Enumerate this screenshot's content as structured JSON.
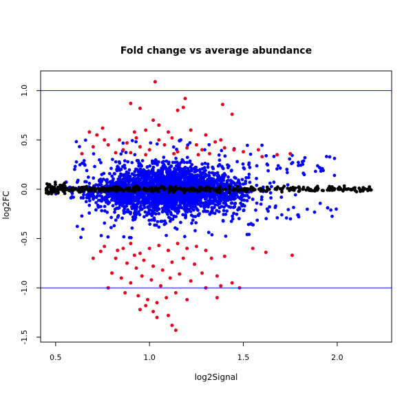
{
  "chart_data": {
    "type": "scatter",
    "title": "Fold change vs average abundance",
    "xlabel": "log2Signal",
    "ylabel": "log2FC",
    "xlim": [
      0.42,
      2.29
    ],
    "ylim": [
      -1.55,
      1.2
    ],
    "x_ticks": [
      {
        "value": 0.5,
        "label": "0.5"
      },
      {
        "value": 1.0,
        "label": "1.0"
      },
      {
        "value": 1.5,
        "label": "1.5"
      },
      {
        "value": 2.0,
        "label": "2.0"
      }
    ],
    "y_ticks": [
      {
        "value": -1.5,
        "label": "-1.5"
      },
      {
        "value": -1.0,
        "label": "-1.0"
      },
      {
        "value": -0.5,
        "label": "-0.5"
      },
      {
        "value": 0.0,
        "label": "0.0"
      },
      {
        "value": 0.5,
        "label": "0.5"
      },
      {
        "value": 1.0,
        "label": "1.0"
      }
    ],
    "reference_lines": [
      {
        "axis": "y",
        "value": 1.0,
        "color": "#0000ff"
      },
      {
        "axis": "y",
        "value": -1.0,
        "color": "#0000ff"
      }
    ],
    "colors": {
      "significant": "#e8001c",
      "moderate": "#0000ff",
      "neutral": "#000000"
    },
    "series": [
      {
        "color": "#e8001c",
        "points": [
          [
            1.03,
            1.09
          ],
          [
            1.19,
            0.92
          ],
          [
            0.9,
            0.87
          ],
          [
            1.39,
            0.86
          ],
          [
            0.95,
            0.82
          ],
          [
            1.18,
            0.83
          ],
          [
            1.15,
            0.8
          ],
          [
            1.44,
            0.76
          ],
          [
            1.02,
            0.7
          ],
          [
            1.05,
            0.65
          ],
          [
            0.98,
            0.6
          ],
          [
            0.92,
            0.58
          ],
          [
            0.68,
            0.58
          ],
          [
            1.3,
            0.55
          ],
          [
            1.12,
            0.52
          ],
          [
            0.75,
            0.62
          ],
          [
            0.72,
            0.55
          ],
          [
            0.84,
            0.5
          ],
          [
            0.88,
            0.47
          ],
          [
            1.25,
            0.45
          ],
          [
            1.35,
            0.48
          ],
          [
            0.78,
            0.45
          ],
          [
            1.28,
            0.4
          ],
          [
            1.4,
            0.42
          ],
          [
            1.5,
            0.38
          ],
          [
            1.6,
            0.33
          ],
          [
            1.68,
            0.35
          ],
          [
            1.08,
            0.45
          ],
          [
            0.95,
            0.43
          ],
          [
            1.0,
            0.4
          ],
          [
            0.86,
            0.4
          ],
          [
            0.82,
            0.37
          ],
          [
            1.15,
            0.38
          ],
          [
            1.2,
            0.42
          ],
          [
            1.32,
            0.36
          ],
          [
            1.45,
            0.4
          ],
          [
            0.76,
            0.5
          ],
          [
            0.7,
            0.43
          ],
          [
            0.64,
            0.36
          ],
          [
            1.1,
            0.58
          ],
          [
            0.93,
            0.52
          ],
          [
            1.22,
            0.6
          ],
          [
            1.38,
            0.5
          ],
          [
            1.05,
            0.5
          ],
          [
            0.98,
            0.35
          ],
          [
            1.58,
            0.4
          ],
          [
            1.75,
            0.36
          ],
          [
            1.26,
            0.35
          ],
          [
            0.9,
            0.37
          ],
          [
            1.13,
            0.36
          ],
          [
            0.86,
            -0.6
          ],
          [
            0.9,
            -0.55
          ],
          [
            0.95,
            -0.65
          ],
          [
            1.0,
            -0.6
          ],
          [
            1.05,
            -0.57
          ],
          [
            1.1,
            -0.62
          ],
          [
            1.15,
            -0.55
          ],
          [
            1.2,
            -0.6
          ],
          [
            1.25,
            -0.58
          ],
          [
            1.3,
            -0.62
          ],
          [
            0.82,
            -0.7
          ],
          [
            0.88,
            -0.75
          ],
          [
            0.93,
            -0.8
          ],
          [
            0.97,
            -0.72
          ],
          [
            1.02,
            -0.78
          ],
          [
            1.07,
            -0.82
          ],
          [
            1.12,
            -0.74
          ],
          [
            1.18,
            -0.7
          ],
          [
            1.24,
            -0.76
          ],
          [
            1.33,
            -0.7
          ],
          [
            0.8,
            -0.85
          ],
          [
            0.85,
            -0.9
          ],
          [
            0.9,
            -0.95
          ],
          [
            0.96,
            -0.88
          ],
          [
            1.01,
            -0.92
          ],
          [
            1.06,
            -0.98
          ],
          [
            1.11,
            -0.9
          ],
          [
            1.16,
            -0.86
          ],
          [
            1.22,
            -0.93
          ],
          [
            1.28,
            -0.85
          ],
          [
            0.78,
            -1.0
          ],
          [
            0.87,
            -1.05
          ],
          [
            0.94,
            -1.08
          ],
          [
            0.99,
            -1.12
          ],
          [
            1.04,
            -1.15
          ],
          [
            1.09,
            -1.1
          ],
          [
            1.14,
            -1.05
          ],
          [
            1.2,
            -1.12
          ],
          [
            1.3,
            -1.0
          ],
          [
            1.36,
            -1.1
          ],
          [
            0.98,
            -1.18
          ],
          [
            1.02,
            -1.24
          ],
          [
            0.95,
            -1.22
          ],
          [
            1.04,
            -1.3
          ],
          [
            1.1,
            -1.28
          ],
          [
            1.12,
            -1.38
          ],
          [
            1.14,
            -1.43
          ],
          [
            1.38,
            -0.98
          ],
          [
            1.44,
            -0.95
          ],
          [
            1.48,
            -1.0
          ],
          [
            0.74,
            -0.63
          ],
          [
            0.7,
            -0.7
          ],
          [
            0.76,
            -0.58
          ],
          [
            1.4,
            -0.68
          ],
          [
            1.55,
            -0.6
          ],
          [
            1.62,
            -0.64
          ],
          [
            1.76,
            -0.67
          ],
          [
            1.36,
            -0.88
          ],
          [
            0.83,
            -0.62
          ],
          [
            0.92,
            -0.67
          ]
        ]
      },
      {
        "color": "#0000ff",
        "generated": true,
        "x_range": [
          0.48,
          2.12
        ],
        "center_x": 1.1,
        "count": 2600
      },
      {
        "color": "#000000",
        "generated": true,
        "x_range": [
          0.45,
          2.2
        ],
        "count": 450
      }
    ]
  }
}
